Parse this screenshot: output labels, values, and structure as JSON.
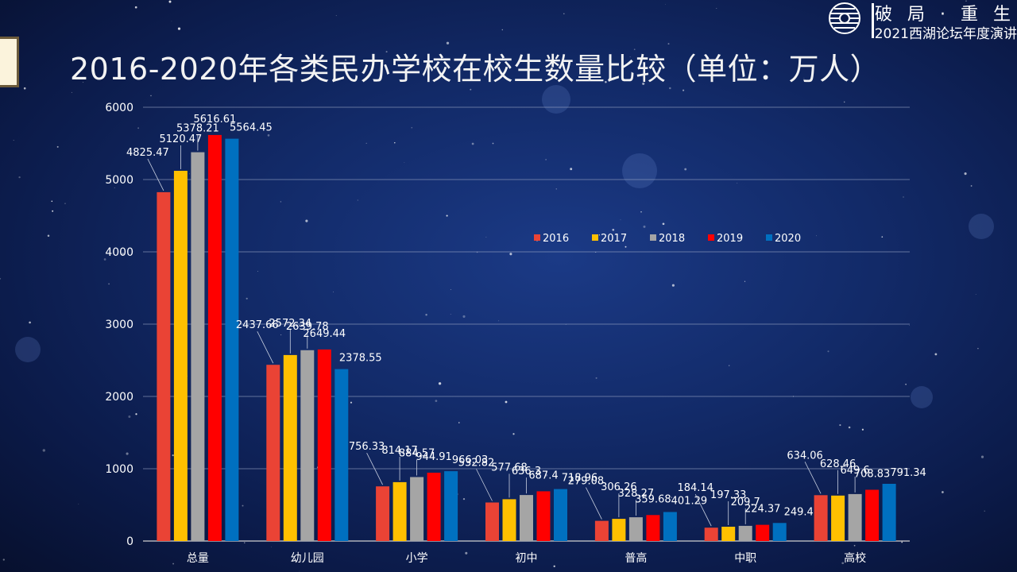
{
  "header": {
    "title": "2016-2020年各类民办学校在校生数量比较（单位：万人）",
    "brand_name": "破 局 · 重 生",
    "brand_sub": "2021西湖论坛年度演讲",
    "logo_icon": "globe-emblem-icon"
  },
  "colors": {
    "2016": "#ea4335",
    "2017": "#ffc000",
    "2018": "#a5a5a5",
    "2019": "#ff0000",
    "2020": "#0070c0"
  },
  "chart_data": {
    "type": "bar",
    "title": "",
    "xlabel": "",
    "ylabel": "",
    "ylim": [
      0,
      6000
    ],
    "yticks": [
      0,
      1000,
      2000,
      3000,
      4000,
      5000,
      6000
    ],
    "grid": true,
    "legend_position": "right-middle",
    "categories": [
      "总量",
      "幼儿园",
      "小学",
      "初中",
      "普高",
      "中职",
      "高校"
    ],
    "series": [
      {
        "name": "2016",
        "values": [
          4825.47,
          2437.66,
          756.33,
          532.82,
          279.08,
          184.14,
          634.06
        ]
      },
      {
        "name": "2017",
        "values": [
          5120.47,
          2572.34,
          814.17,
          577.68,
          306.26,
          197.33,
          628.46
        ]
      },
      {
        "name": "2018",
        "values": [
          5378.21,
          2639.78,
          884.57,
          636.3,
          328.27,
          209.7,
          649.6
        ]
      },
      {
        "name": "2019",
        "values": [
          5616.61,
          2649.44,
          944.91,
          687.4,
          359.68,
          224.37,
          708.83
        ]
      },
      {
        "name": "2020",
        "values": [
          5564.45,
          2378.55,
          966.03,
          718.96,
          401.29,
          249.4,
          791.34
        ]
      }
    ]
  }
}
